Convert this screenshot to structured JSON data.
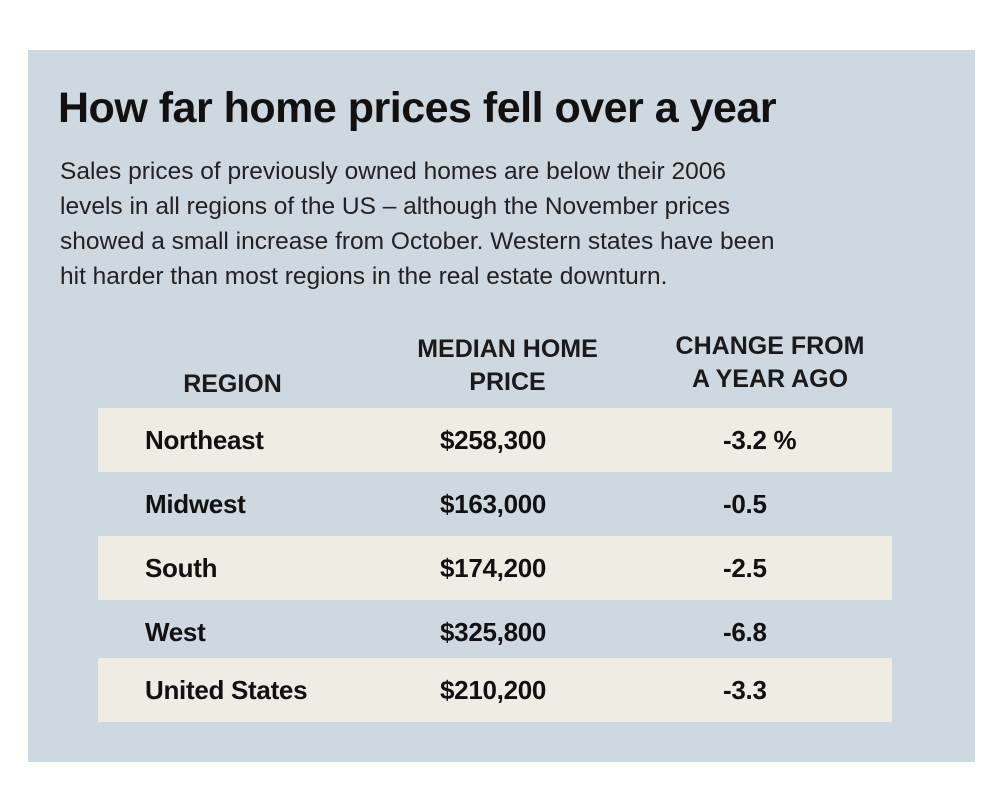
{
  "title": "How far home prices fell over a year",
  "description_lines": [
    "Sales prices of previously owned homes are below their 2006",
    "levels in all regions of the US – although the November prices",
    "showed a small increase from October. Western states have been",
    "hit harder than most regions in the real estate downturn."
  ],
  "chart_data": {
    "type": "table",
    "title": "How far home prices fell over a year",
    "columns": [
      {
        "lines": [
          "REGION"
        ]
      },
      {
        "lines": [
          "MEDIAN HOME",
          "PRICE"
        ]
      },
      {
        "lines": [
          "CHANGE FROM",
          "A YEAR AGO"
        ]
      }
    ],
    "rows": [
      {
        "region": "Northeast",
        "price": "$258,300",
        "change": "-3.2 %"
      },
      {
        "region": "Midwest",
        "price": "$163,000",
        "change": "-0.5"
      },
      {
        "region": "South",
        "price": "$174,200",
        "change": "-2.5"
      },
      {
        "region": "West",
        "price": "$325,800",
        "change": "-6.8"
      },
      {
        "region": "United States",
        "price": "$210,200",
        "change": "-3.3"
      }
    ]
  },
  "colors": {
    "panel": "#cdd8e0",
    "row_shade": "#efede3"
  }
}
